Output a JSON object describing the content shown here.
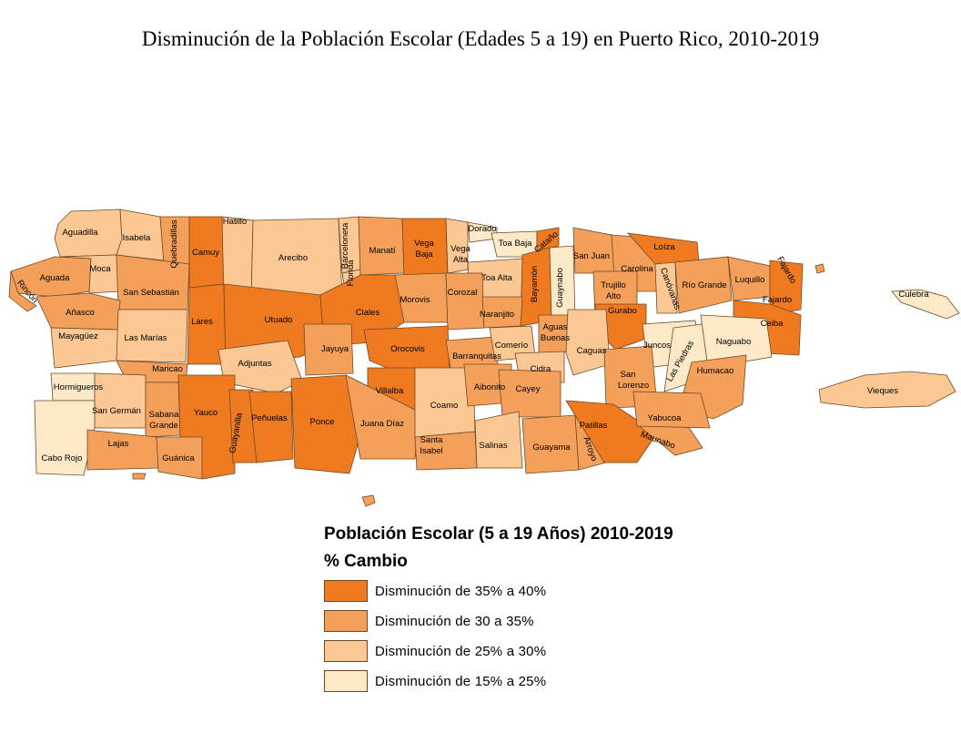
{
  "title": "Disminución de la Población Escolar (Edades 5 a 19)  en Puerto Rico, 2010-2019",
  "legend": {
    "title": "Población Escolar (5 a 19 Años) 2010-2019",
    "subtitle": "% Cambio",
    "classes": [
      {
        "id": "c1",
        "label": "Disminución de 35% a 40%",
        "color": "#ef7a1f"
      },
      {
        "id": "c2",
        "label": "Disminución de 30 a 35%",
        "color": "#f5a05a"
      },
      {
        "id": "c3",
        "label": "Disminución de 25% a 30%",
        "color": "#fbc893"
      },
      {
        "id": "c4",
        "label": "Disminución de 15% a 25%",
        "color": "#fde9c8"
      }
    ]
  },
  "municipalities": [
    {
      "name": "Aguadilla",
      "class": "c3"
    },
    {
      "name": "Isabela",
      "class": "c3"
    },
    {
      "name": "Quebradillas",
      "class": "c2"
    },
    {
      "name": "Camuy",
      "class": "c1"
    },
    {
      "name": "Hatillo",
      "class": "c3"
    },
    {
      "name": "Arecibo",
      "class": "c3"
    },
    {
      "name": "Barceloneta",
      "class": "c3"
    },
    {
      "name": "Florida",
      "class": "c3"
    },
    {
      "name": "Manatí",
      "class": "c2"
    },
    {
      "name": "Vega Baja",
      "class": "c1"
    },
    {
      "name": "Vega Alta",
      "class": "c3"
    },
    {
      "name": "Dorado",
      "class": "c4"
    },
    {
      "name": "Toa Baja",
      "class": "c4"
    },
    {
      "name": "Cataño",
      "class": "c1"
    },
    {
      "name": "Toa Alta",
      "class": "c3"
    },
    {
      "name": "Bayamón",
      "class": "c1"
    },
    {
      "name": "Guaynabo",
      "class": "c4"
    },
    {
      "name": "San Juan",
      "class": "c2"
    },
    {
      "name": "Carolina",
      "class": "c2"
    },
    {
      "name": "Loíza",
      "class": "c1"
    },
    {
      "name": "Canóvanas",
      "class": "c3"
    },
    {
      "name": "Río Grande",
      "class": "c2"
    },
    {
      "name": "Luquillo",
      "class": "c2"
    },
    {
      "name": "Fajardo",
      "class": "c1"
    },
    {
      "name": "Ceiba",
      "class": "c1"
    },
    {
      "name": "Culebra",
      "class": "c4"
    },
    {
      "name": "Vieques",
      "class": "c3"
    },
    {
      "name": "Aguada",
      "class": "c2"
    },
    {
      "name": "Rincón",
      "class": "c2"
    },
    {
      "name": "Moca",
      "class": "c3"
    },
    {
      "name": "San Sebastián",
      "class": "c2"
    },
    {
      "name": "Añasco",
      "class": "c2"
    },
    {
      "name": "Mayagüez",
      "class": "c3"
    },
    {
      "name": "Las Marías",
      "class": "c3"
    },
    {
      "name": "Lares",
      "class": "c1"
    },
    {
      "name": "Utuado",
      "class": "c1"
    },
    {
      "name": "Ciales",
      "class": "c1"
    },
    {
      "name": "Morovis",
      "class": "c2"
    },
    {
      "name": "Corozal",
      "class": "c2"
    },
    {
      "name": "Naranjito",
      "class": "c2"
    },
    {
      "name": "Trujillo Alto",
      "class": "c2"
    },
    {
      "name": "Gurabo",
      "class": "c1"
    },
    {
      "name": "Aguas Buenas",
      "class": "c2"
    },
    {
      "name": "Caguas",
      "class": "c3"
    },
    {
      "name": "Juncos",
      "class": "c4"
    },
    {
      "name": "Las Piedras",
      "class": "c4"
    },
    {
      "name": "Naguabo",
      "class": "c4"
    },
    {
      "name": "Humacao",
      "class": "c2"
    },
    {
      "name": "Maricao",
      "class": "c2"
    },
    {
      "name": "Adjuntas",
      "class": "c3"
    },
    {
      "name": "Jayuya",
      "class": "c2"
    },
    {
      "name": "Orocovis",
      "class": "c1"
    },
    {
      "name": "Barranquitas",
      "class": "c2"
    },
    {
      "name": "Comerío",
      "class": "c3"
    },
    {
      "name": "Cidra",
      "class": "c3"
    },
    {
      "name": "San Lorenzo",
      "class": "c2"
    },
    {
      "name": "Hormigueros",
      "class": "c4"
    },
    {
      "name": "San Germán",
      "class": "c3"
    },
    {
      "name": "Sabana Grande",
      "class": "c2"
    },
    {
      "name": "Yauco",
      "class": "c1"
    },
    {
      "name": "Guayanilla",
      "class": "c1"
    },
    {
      "name": "Peñuelas",
      "class": "c1"
    },
    {
      "name": "Ponce",
      "class": "c1"
    },
    {
      "name": "Villalba",
      "class": "c1"
    },
    {
      "name": "Juana Díaz",
      "class": "c2"
    },
    {
      "name": "Coamo",
      "class": "c3"
    },
    {
      "name": "Aibonito",
      "class": "c2"
    },
    {
      "name": "Cayey",
      "class": "c2"
    },
    {
      "name": "Santa Isabel",
      "class": "c2"
    },
    {
      "name": "Salinas",
      "class": "c3"
    },
    {
      "name": "Guayama",
      "class": "c2"
    },
    {
      "name": "Arroyo",
      "class": "c2"
    },
    {
      "name": "Patillas",
      "class": "c1"
    },
    {
      "name": "Maunabo",
      "class": "c2"
    },
    {
      "name": "Yabucoa",
      "class": "c2"
    },
    {
      "name": "Cabo Rojo",
      "class": "c4"
    },
    {
      "name": "Lajas",
      "class": "c2"
    },
    {
      "name": "Guánica",
      "class": "c2"
    }
  ]
}
